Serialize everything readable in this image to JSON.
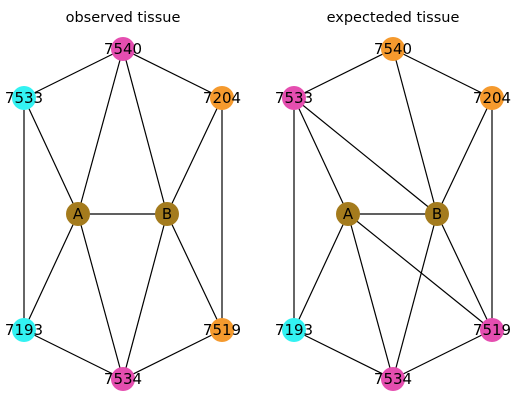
{
  "colors": {
    "pink": "#e54eb0",
    "cyan": "#33f2f2",
    "orange": "#f59a2e",
    "olive": "#a47b1d",
    "edge": "#000000"
  },
  "graphs": [
    {
      "id": "observed",
      "title": "observed tissue",
      "nodes": [
        {
          "id": "7540",
          "label": "7540",
          "color": "pink"
        },
        {
          "id": "7533",
          "label": "7533",
          "color": "cyan"
        },
        {
          "id": "7204",
          "label": "7204",
          "color": "orange"
        },
        {
          "id": "A",
          "label": "A",
          "color": "olive"
        },
        {
          "id": "B",
          "label": "B",
          "color": "olive"
        },
        {
          "id": "7193",
          "label": "7193",
          "color": "cyan"
        },
        {
          "id": "7519",
          "label": "7519",
          "color": "orange"
        },
        {
          "id": "7534",
          "label": "7534",
          "color": "pink"
        }
      ],
      "edges": [
        [
          "7540",
          "7533"
        ],
        [
          "7540",
          "7204"
        ],
        [
          "7540",
          "A"
        ],
        [
          "7540",
          "B"
        ],
        [
          "7533",
          "A"
        ],
        [
          "7533",
          "7193"
        ],
        [
          "7204",
          "B"
        ],
        [
          "7204",
          "7519"
        ],
        [
          "A",
          "B"
        ],
        [
          "A",
          "7193"
        ],
        [
          "A",
          "7534"
        ],
        [
          "B",
          "7534"
        ],
        [
          "B",
          "7519"
        ],
        [
          "7193",
          "7534"
        ],
        [
          "7519",
          "7534"
        ]
      ]
    },
    {
      "id": "expected",
      "title": "expecteded tissue",
      "nodes": [
        {
          "id": "7540",
          "label": "7540",
          "color": "orange"
        },
        {
          "id": "7533",
          "label": "7533",
          "color": "pink"
        },
        {
          "id": "7204",
          "label": "7204",
          "color": "orange"
        },
        {
          "id": "A",
          "label": "A",
          "color": "olive"
        },
        {
          "id": "B",
          "label": "B",
          "color": "olive"
        },
        {
          "id": "7193",
          "label": "7193",
          "color": "cyan"
        },
        {
          "id": "7519",
          "label": "7519",
          "color": "pink"
        },
        {
          "id": "7534",
          "label": "7534",
          "color": "pink"
        }
      ],
      "edges": [
        [
          "7540",
          "7533"
        ],
        [
          "7540",
          "7204"
        ],
        [
          "7540",
          "B"
        ],
        [
          "7533",
          "A"
        ],
        [
          "7533",
          "B"
        ],
        [
          "7533",
          "7193"
        ],
        [
          "7204",
          "B"
        ],
        [
          "7204",
          "7519"
        ],
        [
          "A",
          "B"
        ],
        [
          "A",
          "7193"
        ],
        [
          "A",
          "7534"
        ],
        [
          "A",
          "7519"
        ],
        [
          "B",
          "7534"
        ],
        [
          "B",
          "7519"
        ],
        [
          "7193",
          "7534"
        ],
        [
          "7519",
          "7534"
        ]
      ]
    }
  ]
}
